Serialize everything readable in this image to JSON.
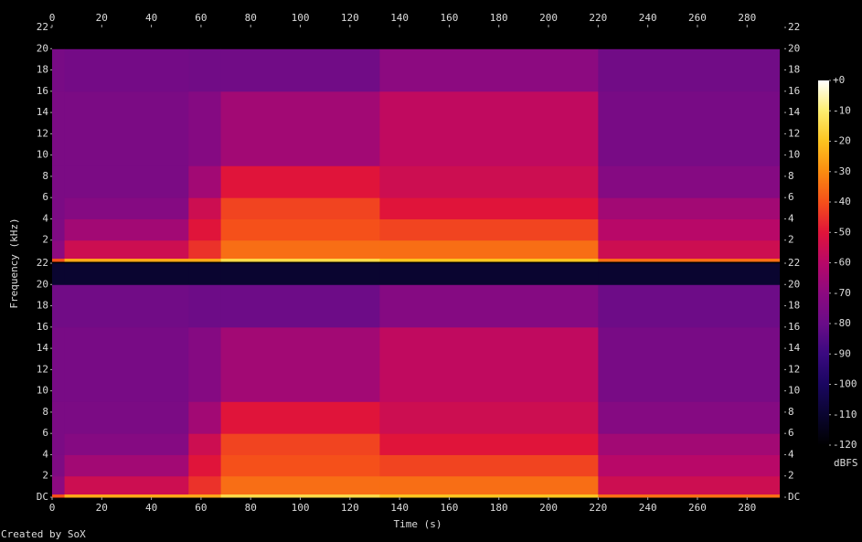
{
  "chart_data": {
    "type": "spectrogram",
    "xlabel": "Time (s)",
    "ylabel": "Frequency (kHz)",
    "colorbar_label": "dBFS",
    "footer": "Created by SoX",
    "xlim": [
      0,
      295
    ],
    "xticks": [
      0,
      20,
      40,
      60,
      80,
      100,
      120,
      140,
      160,
      180,
      200,
      220,
      240,
      260,
      280
    ],
    "ylim": [
      0,
      22
    ],
    "clim": [
      -120,
      0
    ],
    "cticks": [
      {
        "value": 0,
        "label": "+0"
      },
      -10,
      -20,
      -30,
      -40,
      -50,
      -60,
      -70,
      -80,
      -90,
      -100,
      -110,
      -120
    ],
    "colorscale": [
      "#000000",
      "#0a0530",
      "#1a0660",
      "#3a0a80",
      "#6a0c88",
      "#8c0a80",
      "#b80868",
      "#e0143a",
      "#f5501a",
      "#fb8c10",
      "#fcc420",
      "#fdee70",
      "#ffffff"
    ],
    "time_edges": [
      0,
      5,
      55,
      68,
      132,
      220,
      293
    ],
    "freq_edges": [
      0,
      0.3,
      2,
      4,
      6,
      9,
      16,
      20,
      22
    ],
    "channels": [
      {
        "yticks": [
          2,
          4,
          6,
          8,
          10,
          12,
          14,
          16,
          18,
          20,
          22
        ],
        "levels": [
          [
            -40,
            -70,
            -74,
            -75,
            -75,
            -75,
            -76,
            -120
          ],
          [
            -25,
            -55,
            -65,
            -72,
            -75,
            -75,
            -77,
            -120
          ],
          [
            -25,
            -45,
            -50,
            -55,
            -65,
            -72,
            -78,
            -120
          ],
          [
            -15,
            -35,
            -40,
            -42,
            -50,
            -65,
            -78,
            -120
          ],
          [
            -20,
            -35,
            -42,
            -50,
            -55,
            -58,
            -70,
            -120
          ],
          [
            -35,
            -55,
            -60,
            -65,
            -72,
            -76,
            -78,
            -120
          ]
        ]
      },
      {
        "yticks": [
          {
            "value": 0,
            "label": "DC"
          },
          2,
          4,
          6,
          8,
          10,
          12,
          14,
          16,
          18,
          20,
          22
        ],
        "levels": [
          [
            -40,
            -70,
            -74,
            -75,
            -75,
            -76,
            -78,
            -110
          ],
          [
            -25,
            -55,
            -65,
            -72,
            -75,
            -76,
            -78,
            -110
          ],
          [
            -25,
            -45,
            -50,
            -55,
            -65,
            -72,
            -79,
            -110
          ],
          [
            -15,
            -35,
            -40,
            -42,
            -50,
            -65,
            -79,
            -110
          ],
          [
            -20,
            -35,
            -42,
            -50,
            -55,
            -58,
            -72,
            -110
          ],
          [
            -35,
            -55,
            -60,
            -65,
            -72,
            -76,
            -79,
            -110
          ]
        ]
      }
    ]
  }
}
